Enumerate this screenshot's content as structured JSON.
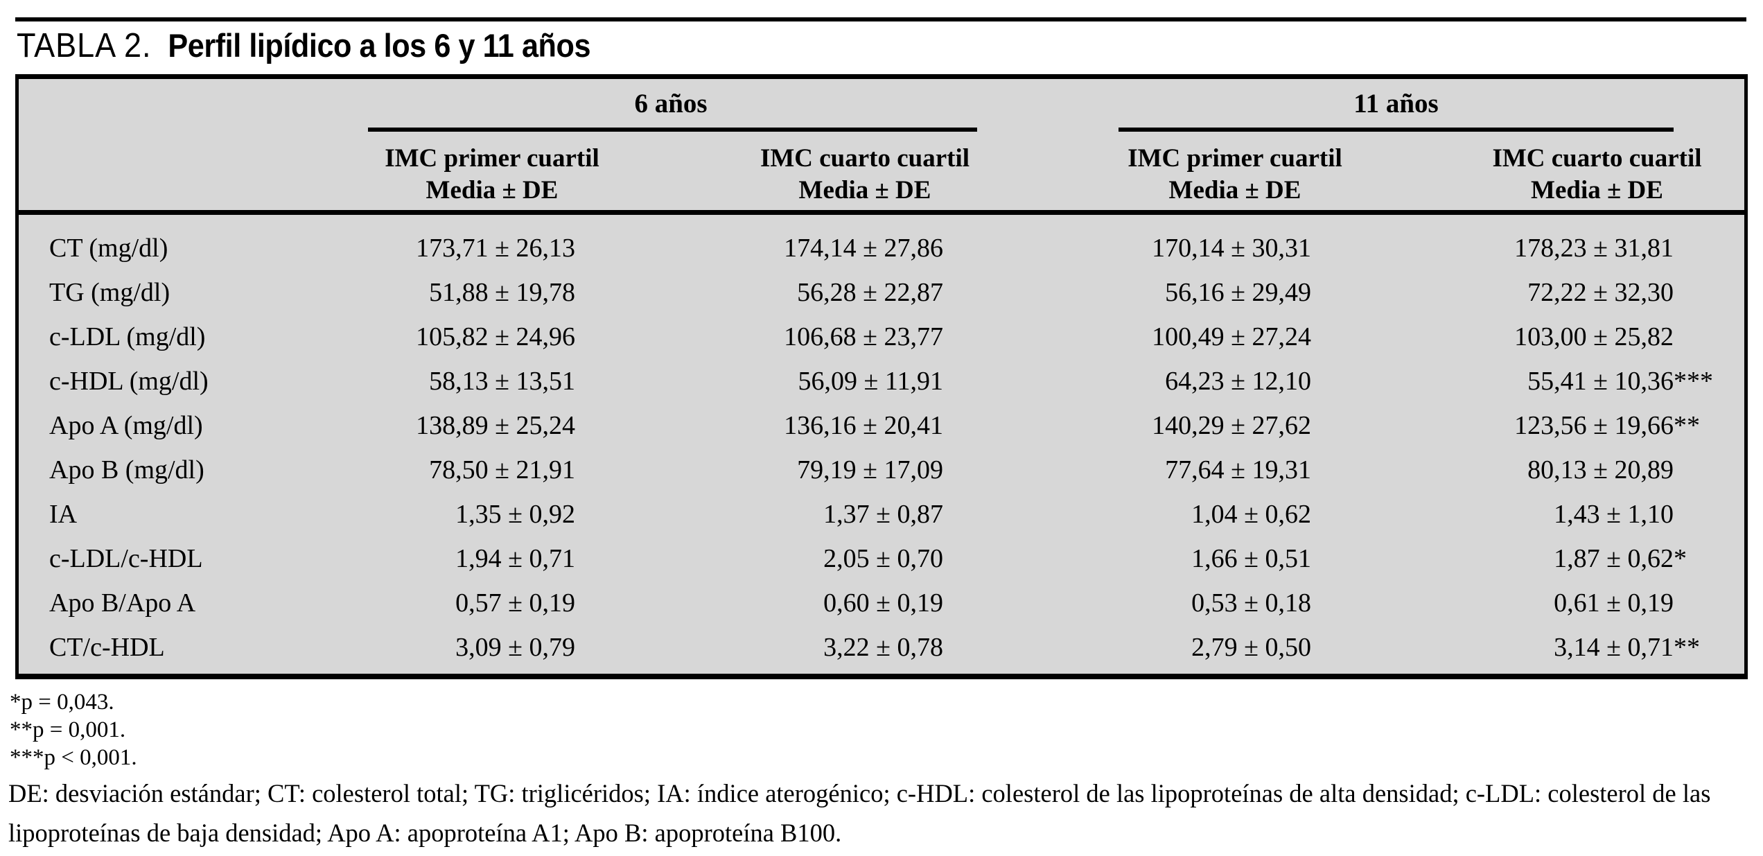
{
  "page": {
    "background": "#ffffff",
    "table_background": "#d7d7d7",
    "rule_color": "#000000",
    "text_color": "#000000"
  },
  "title": {
    "label": "TABLA 2.",
    "text": "Perfil lipídico a los 6 y 11 años"
  },
  "table": {
    "groups": [
      {
        "label": "6 años",
        "subcolumns": [
          {
            "line1": "IMC primer cuartil",
            "line2": "Media ± DE"
          },
          {
            "line1": "IMC cuarto cuartil",
            "line2": "Media ± DE"
          }
        ]
      },
      {
        "label": "11 años",
        "subcolumns": [
          {
            "line1": "IMC primer cuartil",
            "line2": "Media ± DE"
          },
          {
            "line1": "IMC cuarto cuartil",
            "line2": "Media ± DE"
          }
        ]
      }
    ],
    "rows": [
      {
        "label": "CT (mg/dl)",
        "values": [
          "173,71 ± 26,13",
          "174,14 ± 27,86",
          "170,14 ± 30,31",
          "178,23 ± 31,81"
        ]
      },
      {
        "label": "TG (mg/dl)",
        "values": [
          "51,88 ± 19,78",
          "56,28 ± 22,87",
          "56,16 ± 29,49",
          "72,22 ± 32,30"
        ]
      },
      {
        "label": "c-LDL (mg/dl)",
        "values": [
          "105,82 ± 24,96",
          "106,68 ± 23,77",
          "100,49 ± 27,24",
          "103,00 ± 25,82"
        ]
      },
      {
        "label": "c-HDL (mg/dl)",
        "values": [
          "58,13 ± 13,51",
          "56,09 ± 11,91",
          "64,23 ± 12,10",
          "55,41 ± 10,36***"
        ]
      },
      {
        "label": "Apo A (mg/dl)",
        "values": [
          "138,89 ± 25,24",
          "136,16 ± 20,41",
          "140,29 ± 27,62",
          "123,56 ± 19,66**"
        ]
      },
      {
        "label": "Apo B (mg/dl)",
        "values": [
          "78,50 ± 21,91",
          "79,19 ± 17,09",
          "77,64 ± 19,31",
          "80,13 ± 20,89"
        ]
      },
      {
        "label": "IA",
        "values": [
          "1,35 ± 0,92",
          "1,37 ± 0,87",
          "1,04 ± 0,62",
          "1,43 ± 1,10"
        ]
      },
      {
        "label": "c-LDL/c-HDL",
        "values": [
          "1,94 ± 0,71",
          "2,05 ± 0,70",
          "1,66 ± 0,51",
          "1,87 ± 0,62*"
        ]
      },
      {
        "label": "Apo B/Apo A",
        "values": [
          "0,57 ± 0,19",
          "0,60 ± 0,19",
          "0,53 ± 0,18",
          "0,61 ± 0,19"
        ]
      },
      {
        "label": "CT/c-HDL",
        "values": [
          "3,09 ± 0,79",
          "3,22 ± 0,78",
          "2,79 ± 0,50",
          "3,14 ± 0,71**"
        ]
      }
    ]
  },
  "footnotes": [
    "*p = 0,043.",
    "**p = 0,001.",
    "***p < 0,001."
  ],
  "abbreviations": "DE: desviación estándar; CT: colesterol total; TG: triglicéridos; IA: índice aterogénico; c-HDL: colesterol de las lipoproteínas de alta densidad; c-LDL: colesterol de las lipoproteínas de baja densidad; Apo A: apoproteína A1; Apo B: apoproteína B100."
}
